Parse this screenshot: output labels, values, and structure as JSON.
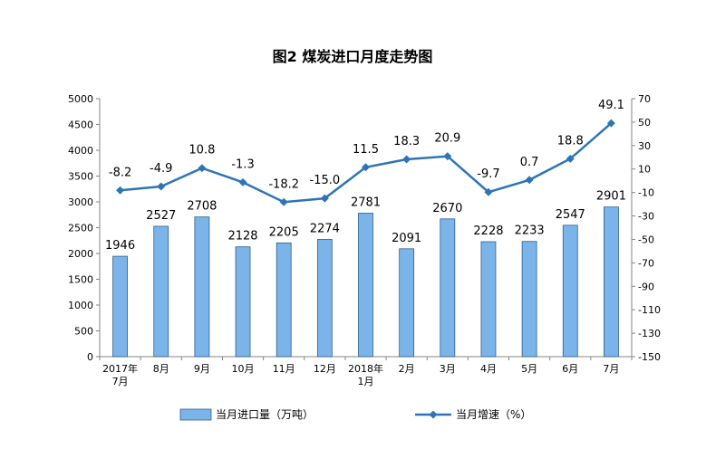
{
  "chart_data": {
    "type": "bar",
    "title": "图2  煤炭进口月度走势图",
    "categories": [
      "2017年\n7月",
      "8月",
      "9月",
      "10月",
      "11月",
      "12月",
      "2018年\n1月",
      "2月",
      "3月",
      "4月",
      "5月",
      "6月",
      "7月"
    ],
    "series": [
      {
        "name": "当月进口量（万吨）",
        "type": "bar",
        "axis": "left",
        "color": "#7bb4e8",
        "values": [
          1946,
          2527,
          2708,
          2128,
          2205,
          2274,
          2781,
          2091,
          2670,
          2228,
          2233,
          2547,
          2901
        ],
        "labels": [
          "1946",
          "2527",
          "2708",
          "2128",
          "2205",
          "2274",
          "2781",
          "2091",
          "2670",
          "2228",
          "2233",
          "2547",
          "2901"
        ]
      },
      {
        "name": "当月增速（%）",
        "type": "line",
        "axis": "right",
        "color": "#2e75b6",
        "values": [
          -8.2,
          -4.9,
          10.8,
          -1.3,
          -18.2,
          -15.0,
          11.5,
          18.3,
          20.9,
          -9.7,
          0.7,
          18.8,
          49.1
        ],
        "labels": [
          "-8.2",
          "-4.9",
          "10.8",
          "-1.3",
          "-18.2",
          "-15.0",
          "11.5",
          "18.3",
          "20.9",
          "-9.7",
          "0.7",
          "18.8",
          "49.1"
        ]
      }
    ],
    "y_left": {
      "ylim": [
        0,
        5000
      ],
      "ticks": [
        "0",
        "500",
        "1000",
        "1500",
        "2000",
        "2500",
        "3000",
        "3500",
        "4000",
        "4500",
        "5000"
      ]
    },
    "y_right": {
      "ylim": [
        -150,
        70
      ],
      "ticks": [
        "-150",
        "-130",
        "-110",
        "-90",
        "-70",
        "-50",
        "-30",
        "-10",
        "10",
        "30",
        "50",
        "70"
      ]
    },
    "grid": false,
    "legend_position": "bottom"
  }
}
